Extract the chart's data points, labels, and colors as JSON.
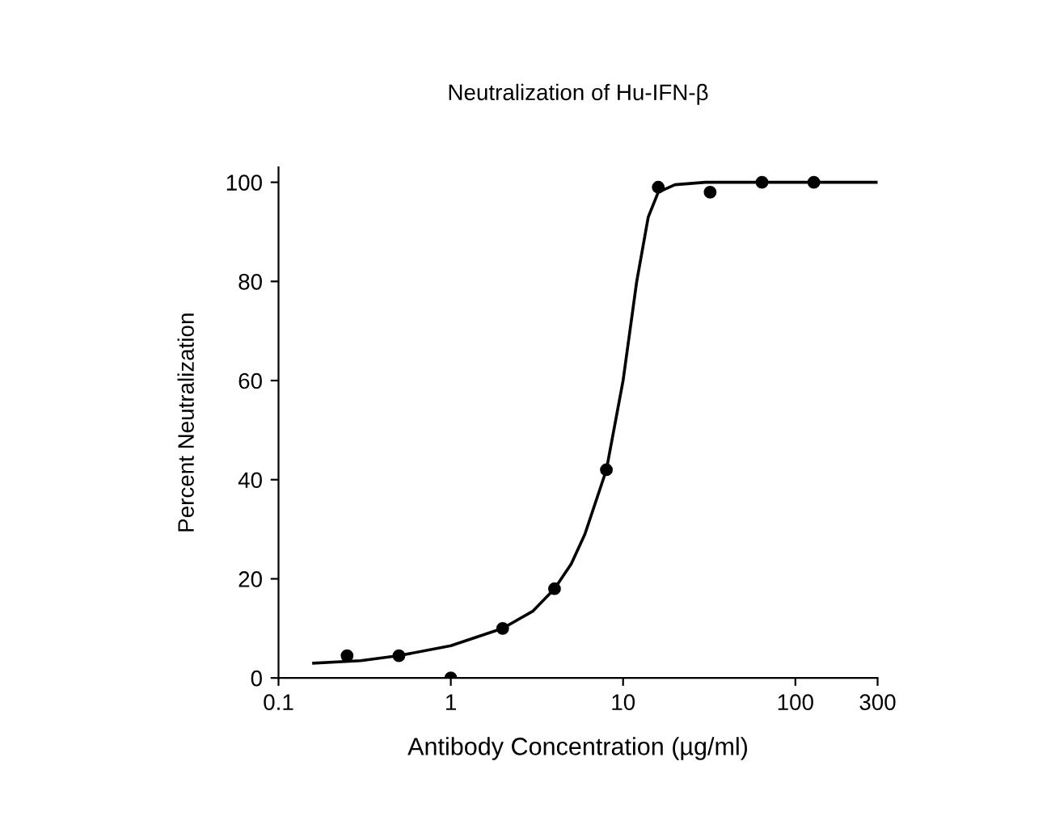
{
  "chart_data": {
    "type": "scatter",
    "title": "Neutralization of Hu-IFN-β",
    "xlabel": "Antibody Concentration (µg/ml)",
    "ylabel": "Percent Neutralization",
    "log": "x",
    "xlim": [
      0.1,
      300
    ],
    "xticks": [
      0.1,
      1,
      10,
      100,
      300
    ],
    "ylim": [
      0,
      103
    ],
    "yticks": [
      0,
      20,
      40,
      60,
      80,
      100
    ],
    "grid": false,
    "legend": false,
    "series": [
      {
        "color": "#000000",
        "marker": "circle",
        "x": [
          0.25,
          0.5,
          1,
          2,
          4,
          8,
          16,
          32,
          64,
          128
        ],
        "values": [
          4.5,
          4.5,
          0,
          10,
          18,
          42,
          99,
          98,
          100,
          100
        ]
      },
      {
        "type": "line",
        "color": "#000000",
        "line_style": "solid",
        "x": [
          0.16,
          0.3,
          0.5,
          1,
          2,
          3,
          4,
          5,
          6,
          8,
          10,
          12,
          14,
          16,
          20,
          30,
          300
        ],
        "values": [
          3,
          3.5,
          4.5,
          6.5,
          10,
          13.5,
          18,
          23,
          29,
          42,
          60,
          80,
          93,
          98,
          99.5,
          100,
          100
        ]
      }
    ]
  }
}
